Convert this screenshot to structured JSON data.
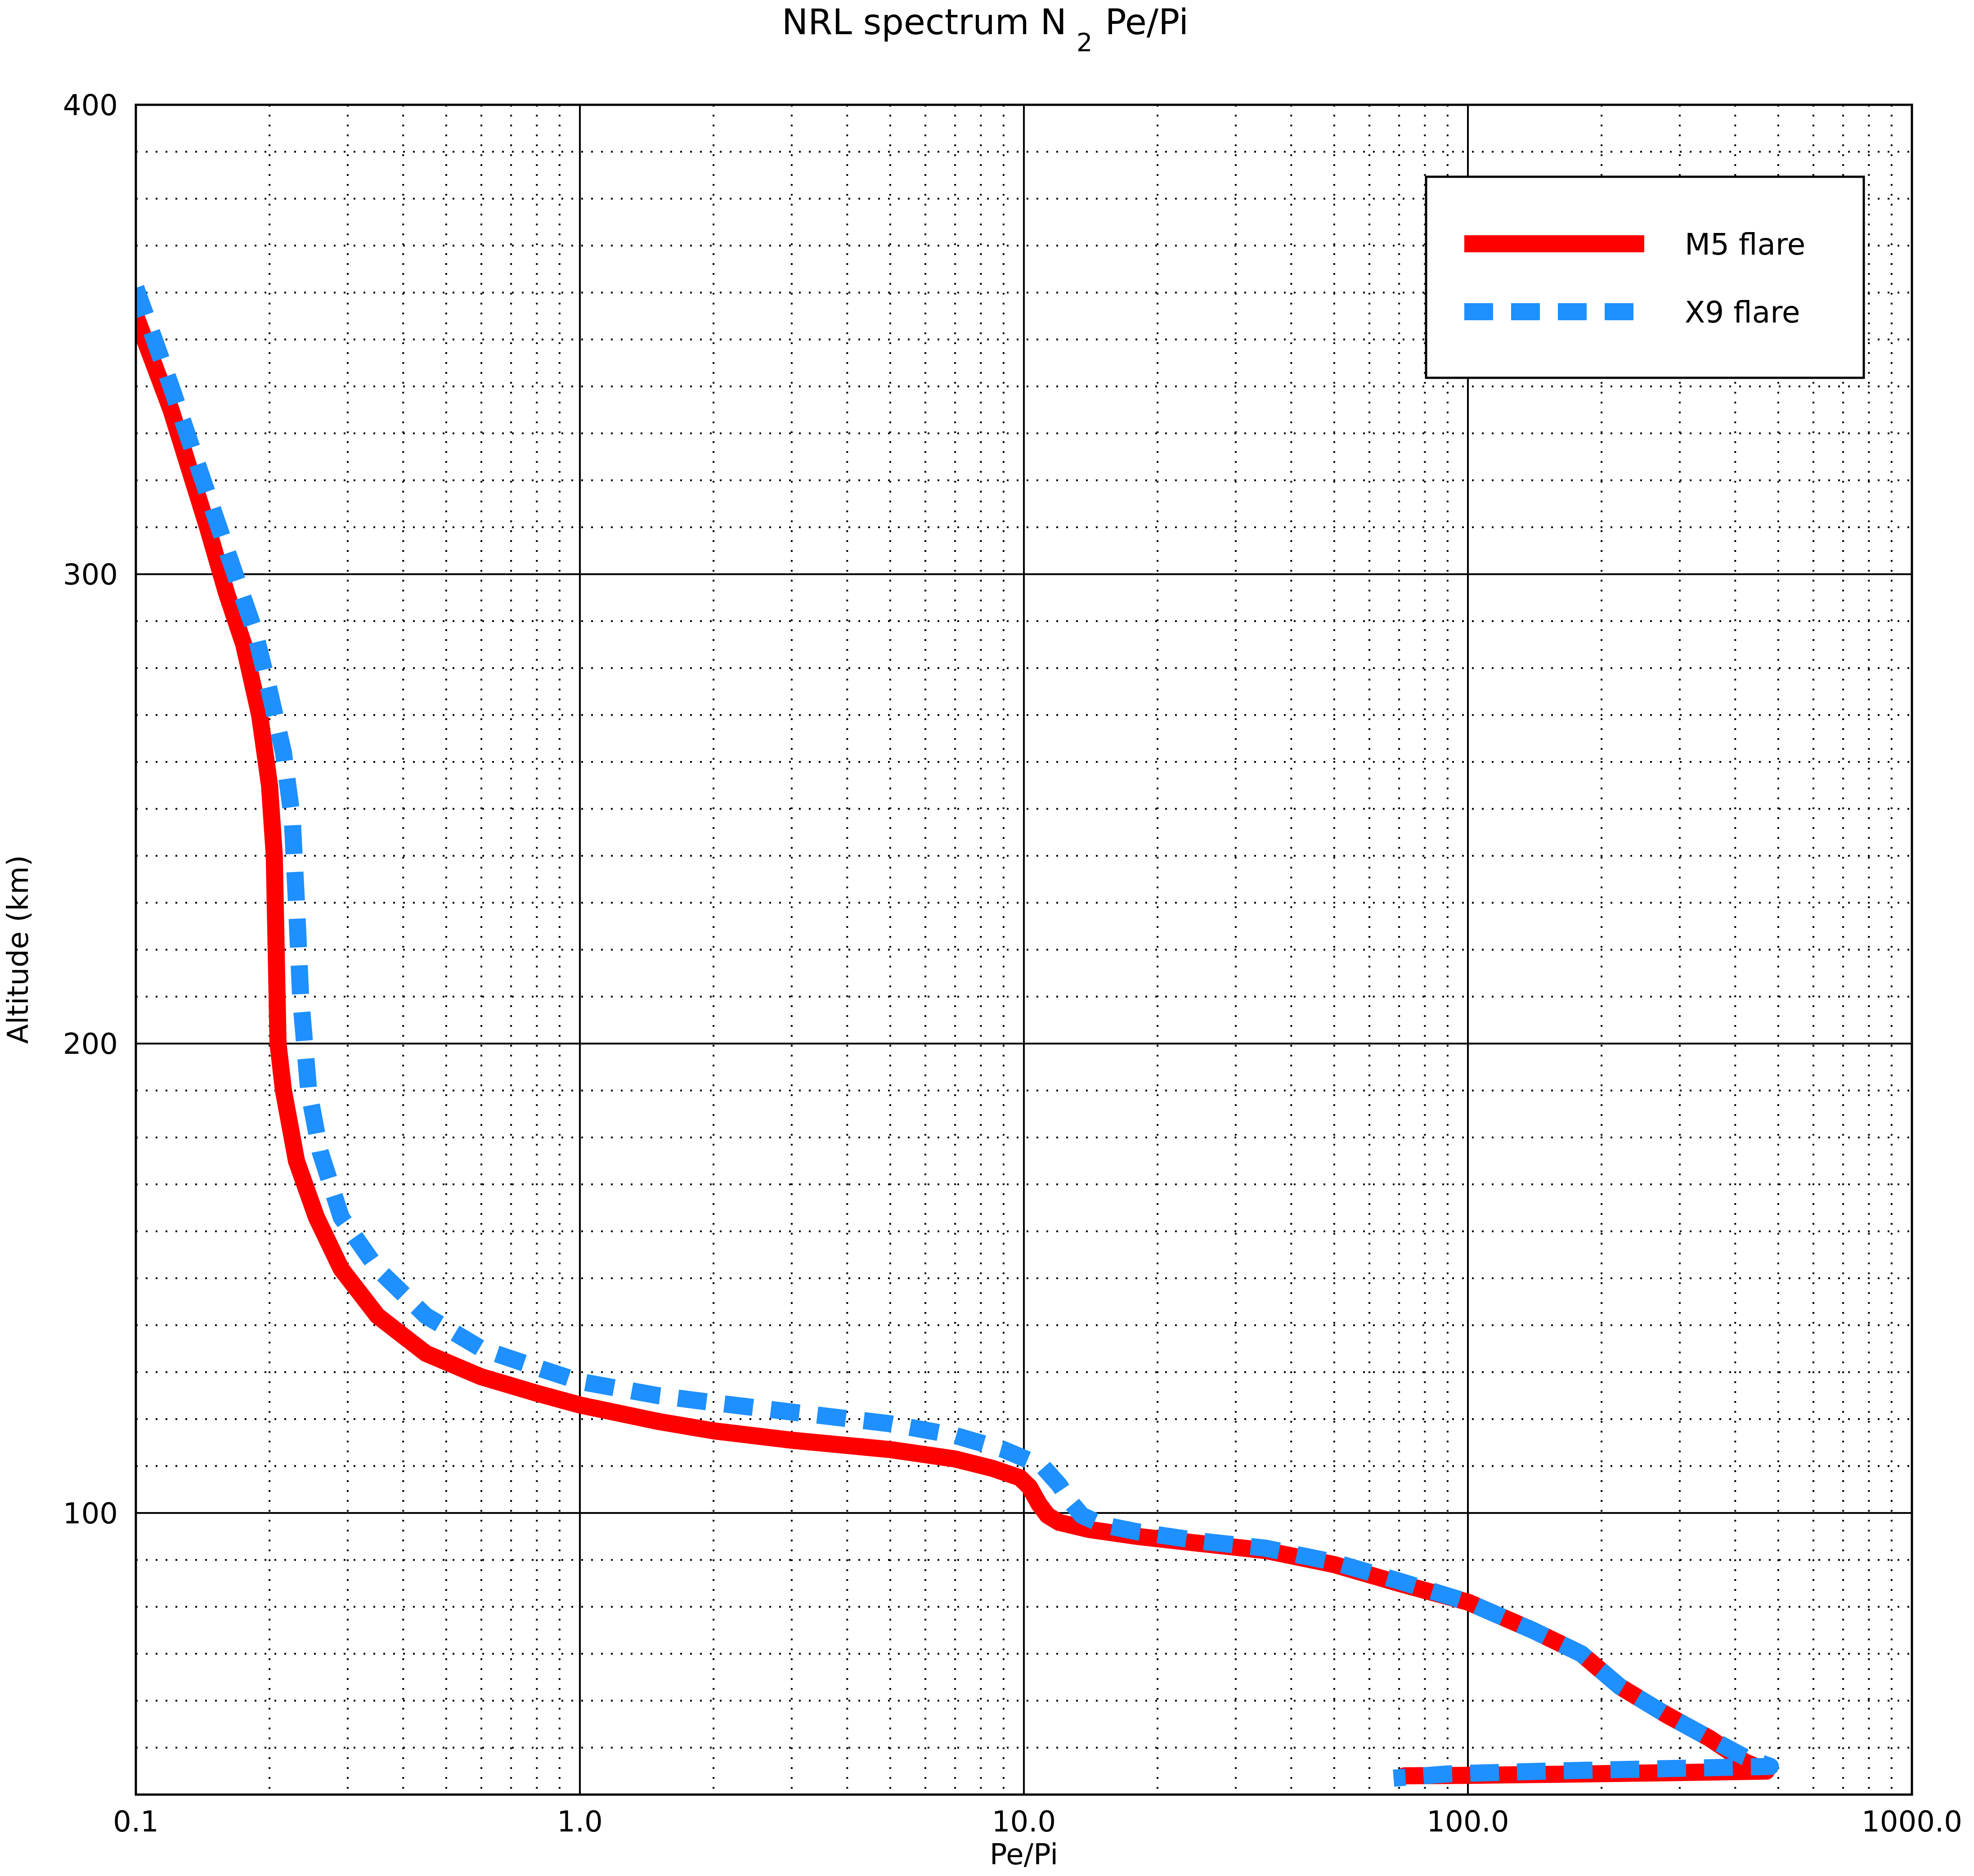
{
  "chart_data": {
    "type": "line",
    "title": "NRL spectrum N",
    "title_subscript": "2",
    "title_suffix": "Pe/Pi",
    "xlabel": "Pe/Pi",
    "ylabel": "Altitude (km)",
    "xscale": "log",
    "xlim": [
      0.1,
      1000.0
    ],
    "ylim": [
      40,
      400
    ],
    "x_ticks": [
      0.1,
      1.0,
      10.0,
      100.0,
      1000.0
    ],
    "x_tick_labels": [
      "0.1",
      "1.0",
      "10.0",
      "100.0",
      "1000.0"
    ],
    "y_ticks": [
      100,
      200,
      300,
      400
    ],
    "y_tick_labels": [
      "100",
      "200",
      "300",
      "400"
    ],
    "grid_major": "solid",
    "grid_minor": "dotted",
    "legend_position": "top-right",
    "series": [
      {
        "name": "M5 flare",
        "color": "#ff0000",
        "style": "solid",
        "points": [
          [
            0.1,
            355
          ],
          [
            0.12,
            335
          ],
          [
            0.145,
            310
          ],
          [
            0.16,
            296
          ],
          [
            0.175,
            285
          ],
          [
            0.19,
            270
          ],
          [
            0.2,
            255
          ],
          [
            0.205,
            240
          ],
          [
            0.207,
            220
          ],
          [
            0.209,
            200
          ],
          [
            0.215,
            190
          ],
          [
            0.23,
            175
          ],
          [
            0.255,
            163
          ],
          [
            0.29,
            152
          ],
          [
            0.35,
            142
          ],
          [
            0.45,
            134
          ],
          [
            0.6,
            129
          ],
          [
            0.8,
            125.5
          ],
          [
            1.0,
            123
          ],
          [
            1.5,
            119.5
          ],
          [
            2.0,
            117.5
          ],
          [
            3.0,
            115.5
          ],
          [
            5.0,
            113.5
          ],
          [
            7.0,
            111.5
          ],
          [
            8.5,
            109.5
          ],
          [
            9.8,
            107.5
          ],
          [
            10.3,
            105.5
          ],
          [
            10.8,
            102
          ],
          [
            11.3,
            99.5
          ],
          [
            12.0,
            98
          ],
          [
            14.0,
            96.5
          ],
          [
            18.0,
            95
          ],
          [
            25.0,
            93.5
          ],
          [
            35.0,
            92
          ],
          [
            50.0,
            89
          ],
          [
            70.0,
            85
          ],
          [
            100.0,
            81
          ],
          [
            140.0,
            75
          ],
          [
            180.0,
            70
          ],
          [
            220.0,
            63
          ],
          [
            280.0,
            57
          ],
          [
            350.0,
            52
          ],
          [
            420.0,
            47
          ],
          [
            470.0,
            45
          ],
          [
            300.0,
            44.7
          ],
          [
            150.0,
            44.3
          ],
          [
            100.0,
            44.1
          ],
          [
            72.0,
            44.0
          ]
        ]
      },
      {
        "name": "X9 flare",
        "color": "#1e90ff",
        "style": "dashed",
        "points": [
          [
            0.1,
            361
          ],
          [
            0.12,
            340
          ],
          [
            0.15,
            313
          ],
          [
            0.17,
            298
          ],
          [
            0.185,
            288
          ],
          [
            0.2,
            275
          ],
          [
            0.215,
            262
          ],
          [
            0.225,
            248
          ],
          [
            0.23,
            230
          ],
          [
            0.235,
            210
          ],
          [
            0.245,
            190
          ],
          [
            0.26,
            177
          ],
          [
            0.29,
            163
          ],
          [
            0.35,
            152
          ],
          [
            0.45,
            142
          ],
          [
            0.6,
            135
          ],
          [
            0.8,
            131
          ],
          [
            1.0,
            128
          ],
          [
            1.5,
            125
          ],
          [
            2.0,
            123.5
          ],
          [
            3.0,
            121.5
          ],
          [
            5.0,
            119
          ],
          [
            7.0,
            116.5
          ],
          [
            9.0,
            113.5
          ],
          [
            11.0,
            110
          ],
          [
            12.0,
            106
          ],
          [
            12.7,
            102.5
          ],
          [
            13.5,
            99.5
          ],
          [
            15.0,
            97.5
          ],
          [
            18.0,
            96
          ],
          [
            25.0,
            94
          ],
          [
            35.0,
            92.5
          ],
          [
            50.0,
            89.5
          ],
          [
            70.0,
            85.5
          ],
          [
            100.0,
            81
          ],
          [
            140.0,
            75
          ],
          [
            180.0,
            70
          ],
          [
            220.0,
            63
          ],
          [
            280.0,
            57
          ],
          [
            350.0,
            52
          ],
          [
            420.0,
            48
          ],
          [
            480.0,
            46
          ],
          [
            300.0,
            45.6
          ],
          [
            150.0,
            45
          ],
          [
            90.0,
            44.4
          ],
          [
            68.0,
            43.5
          ]
        ]
      }
    ]
  }
}
